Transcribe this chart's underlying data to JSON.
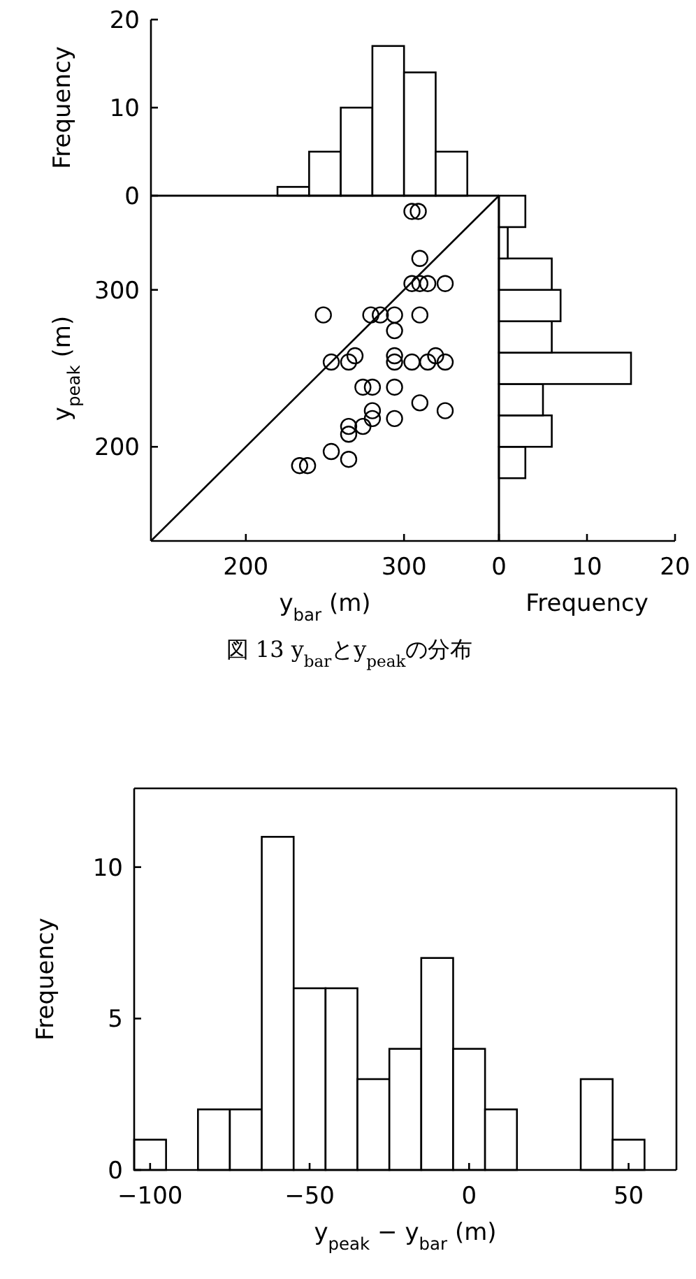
{
  "chart_data": [
    {
      "type": "histogram",
      "ylabel": "Frequency",
      "xlim": [
        140,
        360
      ],
      "ylim": [
        0,
        20
      ],
      "yticks": [
        0,
        10,
        20
      ],
      "tick_labels": "y",
      "bins": [
        220,
        240,
        260,
        280,
        300,
        320,
        340
      ],
      "values": [
        1,
        5,
        10,
        17,
        14,
        5
      ]
    },
    {
      "type": "scatter",
      "xlabel": "y$_{bar}$ (m)",
      "ylabel": "y$_{peak}$ (m)",
      "xlim": [
        140,
        360
      ],
      "ylim": [
        140,
        360
      ],
      "xticks": [
        200,
        300
      ],
      "yticks": [
        200,
        300
      ],
      "annotations": [
        "図 13  y$_{bar}$とy$_{peak}$の分布"
      ],
      "series": [
        {
          "type": "scatter",
          "marker": "circle",
          "x": [
            305,
            309,
            310,
            305,
            310,
            315,
            326,
            249,
            279,
            285,
            294,
            310,
            294,
            254,
            265,
            269,
            294,
            294,
            305,
            315,
            320,
            326,
            274,
            280,
            294,
            310,
            326,
            280,
            280,
            294,
            274,
            265,
            265,
            254,
            265,
            234,
            239
          ],
          "values": [
            350,
            350,
            320,
            304,
            304,
            304,
            304,
            284,
            284,
            284,
            284,
            284,
            274,
            254,
            254,
            258,
            258,
            254,
            254,
            254,
            258,
            254,
            238,
            238,
            238,
            228,
            223,
            223,
            218,
            218,
            213,
            213,
            208,
            197,
            192,
            188,
            188
          ]
        },
        {
          "type": "line",
          "x": [
            140,
            360
          ],
          "values": [
            140,
            360
          ]
        }
      ]
    },
    {
      "type": "histogram",
      "orientation": "horizontal",
      "xlabel": "Frequency",
      "xlim": [
        0,
        20
      ],
      "ylim": [
        140,
        360
      ],
      "xticks": [
        0,
        10,
        20
      ],
      "tick_labels": "x",
      "bins": [
        180,
        200,
        220,
        240,
        260,
        280,
        300,
        320,
        340,
        360
      ],
      "values": [
        3,
        6,
        5,
        15,
        6,
        7,
        6,
        1,
        3
      ]
    },
    {
      "type": "histogram",
      "xlabel": "y$_{peak}$ − y$_{bar}$ (m)",
      "ylabel": "Frequency",
      "xlim": [
        -105,
        65
      ],
      "ylim": [
        0,
        12.6
      ],
      "xticks": [
        -100,
        -50,
        0,
        50
      ],
      "yticks": [
        0,
        5,
        10
      ],
      "bins": [
        -105,
        -95,
        -85,
        -75,
        -65,
        -55,
        -45,
        -35,
        -25,
        -15,
        -5,
        5,
        15,
        25,
        35,
        45,
        55
      ],
      "values": [
        1,
        0,
        2,
        2,
        11,
        6,
        6,
        3,
        4,
        7,
        4,
        2,
        0,
        0,
        3,
        1
      ]
    }
  ]
}
